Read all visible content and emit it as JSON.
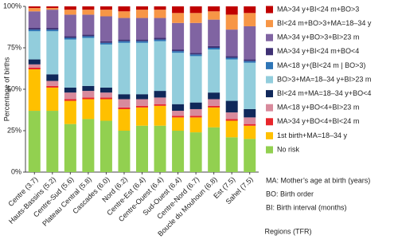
{
  "chart_data": {
    "type": "stacked_bar",
    "y_label": "Percentage of births",
    "x_label": "Regions (TFR)",
    "categories": [
      "Centre (3.7)",
      "Hauts-Bassins (5.2)",
      "Centre-Sud (5.6)",
      "Plateau Central (5.8)",
      "Cascades (6.0)",
      "Nord (6.2)",
      "Centre-Est (6.4)",
      "Centre-Ouest (6.4)",
      "Sud-Ouest (6.4)",
      "Centre-Nord (6.7)",
      "Boucle du Mouhoun (6.8)",
      "Est (7.5)",
      "Sahel (7.5)"
    ],
    "series": [
      {
        "name": "No risk",
        "color": "#92d050",
        "values": [
          37,
          37,
          29,
          32,
          31,
          25,
          28,
          28,
          25,
          24,
          27,
          21,
          20
        ]
      },
      {
        "name": "1st birth+MA=18–34 y",
        "color": "#ffc000",
        "values": [
          25,
          14,
          14,
          12,
          13,
          13,
          11,
          12,
          8,
          9,
          12,
          10,
          8
        ]
      },
      {
        "name": "MA>34 y+BO<4+BI<24 m",
        "color": "#e8262b",
        "values": [
          1,
          1,
          1,
          1,
          1,
          1,
          1,
          1,
          1,
          1,
          1,
          1,
          1
        ]
      },
      {
        "name": "MA<18 y+BO<4+BI>23 m",
        "color": "#d88a9c",
        "values": [
          2,
          3,
          4,
          4,
          3,
          5,
          4,
          4,
          3,
          4,
          4,
          4,
          4
        ]
      },
      {
        "name": "BI<24 m+MA=18–34 y+BO<4",
        "color": "#10285a",
        "values": [
          3,
          4,
          3,
          3,
          3,
          3,
          3,
          4,
          4,
          4,
          4,
          7,
          5
        ]
      },
      {
        "name": "BO>3+MA=18–34 y+BI>23 m",
        "color": "#92cddc",
        "values": [
          17,
          26,
          29,
          29,
          26,
          31,
          31,
          30,
          31,
          28,
          26,
          25,
          28
        ]
      },
      {
        "name": "MA<18 y+(BI<24 m | BO>3)",
        "color": "#2e75b6",
        "values": [
          1,
          1,
          1,
          1,
          1,
          1,
          1,
          1,
          1,
          1,
          1,
          1,
          1
        ]
      },
      {
        "name": "MA>34 y+BI<24 m+BO<4",
        "color": "#3f3174",
        "values": [
          1,
          1,
          1,
          1,
          1,
          1,
          1,
          1,
          1,
          1,
          1,
          1,
          1
        ]
      },
      {
        "name": "MA>34 y+BO>3+BI>23 m",
        "color": "#8064a2",
        "values": [
          10,
          11,
          13,
          12,
          15,
          13,
          13,
          12,
          16,
          18,
          16,
          16,
          20
        ]
      },
      {
        "name": "BI<24 m+BO>3+MA=18–34 y",
        "color": "#f79646",
        "values": [
          2,
          1,
          3,
          3,
          4,
          4,
          5,
          5,
          6,
          6,
          5,
          9,
          8
        ]
      },
      {
        "name": "MA>34 y+BI<24 m+BO>3",
        "color": "#c00000",
        "values": [
          1,
          1,
          2,
          2,
          2,
          3,
          2,
          2,
          4,
          4,
          3,
          5,
          4
        ]
      }
    ],
    "ylim": [
      0,
      100
    ],
    "yticks": [
      {
        "value": 0,
        "label": "0%"
      },
      {
        "value": 25,
        "label": "25%"
      },
      {
        "value": 50,
        "label": "50%"
      },
      {
        "value": 75,
        "label": "75%"
      },
      {
        "value": 100,
        "label": "100%"
      }
    ],
    "notes": [
      "MA: Mother’s age at birth (years)",
      "BO: Birth order",
      "BI: Birth interval (months)"
    ]
  }
}
